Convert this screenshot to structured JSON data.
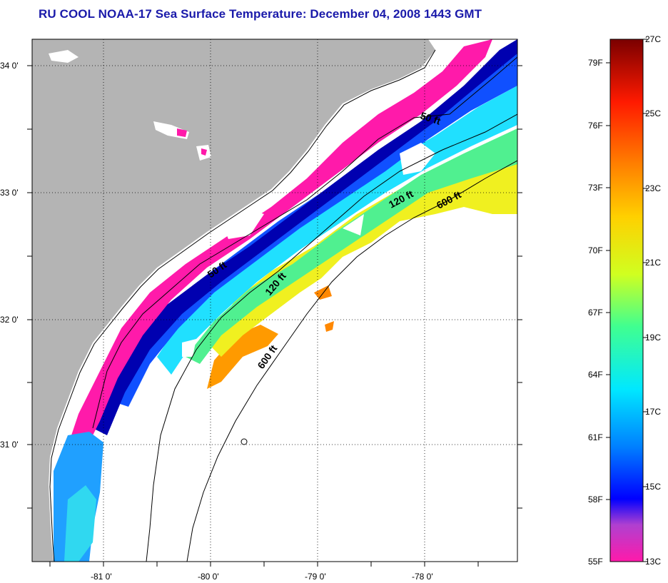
{
  "title": "RU COOL  NOAA-17  Sea Surface Temperature:  December 04, 2008 1443 GMT",
  "map": {
    "lat_ticks": [
      "34 0'",
      "33 0'",
      "32 0'",
      "31 0'"
    ],
    "lon_ticks": [
      "-81 0'",
      "-80 0'",
      "-79 0'",
      "-78 0'"
    ],
    "isobaths": [
      "50 ft",
      "50 ft",
      "120 ft",
      "120 ft",
      "600 ft",
      "600 ft"
    ]
  },
  "colorbar": {
    "fahrenheit": [
      "79F",
      "76F",
      "73F",
      "70F",
      "67F",
      "64F",
      "61F",
      "58F",
      "55F"
    ],
    "celsius": [
      "27C",
      "25C",
      "23C",
      "21C",
      "19C",
      "17C",
      "15C",
      "13C"
    ],
    "colors": {
      "hot": "#7a0000",
      "red": "#ff1a00",
      "orange": "#ff8000",
      "yellow": "#ffff00",
      "green": "#40ff80",
      "cyan": "#00ffff",
      "blue": "#0040ff",
      "navy": "#0000a0",
      "purple": "#8040c0",
      "magenta": "#ff1aaa"
    }
  },
  "land_color": "#b4b4b4"
}
